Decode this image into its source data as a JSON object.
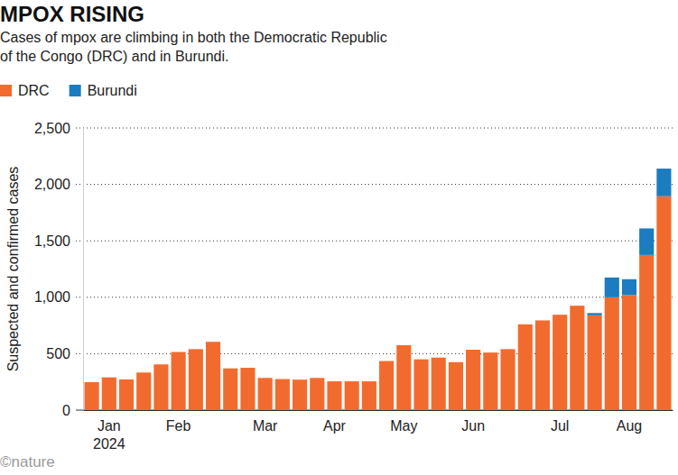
{
  "chart_data": {
    "type": "bar",
    "title": "MPOX RISING",
    "subtitle": "Cases of mpox are climbing in both the Democratic Republic of the Congo (DRC) and in Burundi.",
    "y_label": "Suspected and confirmed cases",
    "source": "©nature",
    "stacked": true,
    "grid": true,
    "legend": "top-left",
    "categories": [
      null,
      "Jan 2024",
      null,
      null,
      null,
      "Feb",
      null,
      null,
      null,
      null,
      "Mar",
      null,
      null,
      null,
      "Apr",
      null,
      null,
      null,
      "May",
      null,
      null,
      null,
      "Jun",
      null,
      null,
      null,
      null,
      "Jul",
      null,
      null,
      null,
      "Aug",
      null,
      null
    ],
    "series": [
      {
        "name": "DRC",
        "color": "#f26b2e",
        "values": [
          248,
          290,
          272,
          333,
          405,
          515,
          540,
          605,
          370,
          375,
          285,
          275,
          270,
          285,
          255,
          255,
          255,
          435,
          575,
          450,
          465,
          425,
          535,
          510,
          540,
          760,
          795,
          845,
          925,
          840,
          1000,
          1020,
          1375,
          1895
        ]
      },
      {
        "name": "Burundi",
        "color": "#1b7cc0",
        "values": [
          0,
          0,
          0,
          0,
          0,
          0,
          0,
          0,
          0,
          0,
          0,
          0,
          0,
          0,
          0,
          0,
          0,
          0,
          0,
          0,
          0,
          0,
          0,
          0,
          0,
          0,
          0,
          0,
          0,
          20,
          175,
          140,
          235,
          245
        ]
      }
    ],
    "ylim": [
      0,
      2500
    ],
    "yticks": [
      0,
      500,
      {
        "value": 1000,
        "label": "1,000"
      },
      {
        "value": 1500,
        "label": "1,500"
      },
      {
        "value": 2000,
        "label": "2,000"
      },
      {
        "value": 2500,
        "label": "2,500"
      }
    ]
  }
}
